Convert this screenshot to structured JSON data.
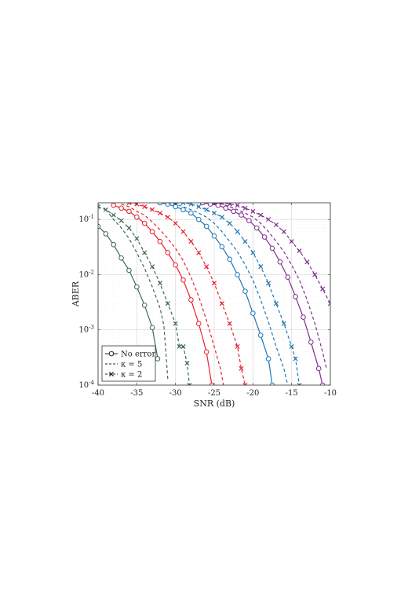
{
  "chart_data": {
    "type": "line",
    "title": "",
    "xlabel": "SNR (dB)",
    "ylabel": "ABER",
    "xlim": [
      -40,
      -10
    ],
    "ylim": [
      0.0001,
      0.2
    ],
    "y_scale": "log",
    "grid": true,
    "legend_position": "bottom-left",
    "x_ticks": [
      -40,
      -35,
      -30,
      -25,
      -20,
      -15,
      -10
    ],
    "x_tick_labels": [
      "-40",
      "-35",
      "-30",
      "-25",
      "-20",
      "-15",
      "-10"
    ],
    "y_ticks": [
      0.0001,
      0.001,
      0.01,
      0.1
    ],
    "y_tick_labels": [
      {
        "base": "10",
        "exp": "-4"
      },
      {
        "base": "10",
        "exp": "-3"
      },
      {
        "base": "10",
        "exp": "-2"
      },
      {
        "base": "10",
        "exp": "-1"
      }
    ],
    "legend": [
      {
        "label": "No error",
        "style": "solid",
        "marker": "o"
      },
      {
        "label": "κ = 5",
        "style": "dashed",
        "marker": "none"
      },
      {
        "label": "κ = 2",
        "style": "dashed",
        "marker": "x"
      }
    ],
    "series": [
      {
        "group": "green",
        "color": "#3d6b50",
        "style": "solid",
        "marker": "o",
        "x": [
          -40,
          -39,
          -38,
          -37,
          -36,
          -35,
          -34,
          -33,
          -32.3
        ],
        "y": [
          0.075,
          0.055,
          0.035,
          0.02,
          0.012,
          0.006,
          0.0028,
          0.0011,
          0.0003
        ]
      },
      {
        "group": "green",
        "color": "#3d6b50",
        "style": "dashed",
        "marker": "none",
        "x": [
          -39,
          -38,
          -37,
          -36,
          -35,
          -34,
          -33,
          -32,
          -31.5,
          -31
        ],
        "y": [
          0.15,
          0.1,
          0.07,
          0.045,
          0.025,
          0.013,
          0.006,
          0.0025,
          0.0012,
          0.00013
        ]
      },
      {
        "group": "green",
        "color": "#3d6b50",
        "style": "dashed",
        "marker": "x",
        "x": [
          -40,
          -39,
          -38,
          -37,
          -36,
          -35,
          -34,
          -33,
          -32,
          -31,
          -30,
          -29.5,
          -29,
          -28.5,
          -28.2
        ],
        "y": [
          0.17,
          0.15,
          0.12,
          0.095,
          0.07,
          0.045,
          0.025,
          0.014,
          0.007,
          0.003,
          0.0013,
          0.0005,
          0.0005,
          0.00025,
          0.0001
        ]
      },
      {
        "group": "red",
        "color": "#e8222e",
        "style": "solid",
        "marker": "o",
        "x": [
          -38,
          -37,
          -36,
          -35,
          -34,
          -33,
          -32,
          -31,
          -30,
          -29,
          -28,
          -27,
          -26,
          -25.3
        ],
        "y": [
          0.18,
          0.16,
          0.14,
          0.11,
          0.085,
          0.06,
          0.04,
          0.025,
          0.015,
          0.008,
          0.0035,
          0.0013,
          0.0004,
          0.0001
        ]
      },
      {
        "group": "red",
        "color": "#e8222e",
        "style": "dashed",
        "marker": "none",
        "x": [
          -37,
          -36,
          -35,
          -34,
          -33,
          -32,
          -31,
          -30,
          -29,
          -28,
          -27,
          -26,
          -25,
          -24.2,
          -23.8
        ],
        "y": [
          0.19,
          0.17,
          0.14,
          0.12,
          0.09,
          0.065,
          0.045,
          0.03,
          0.018,
          0.009,
          0.004,
          0.0015,
          0.0005,
          0.0002,
          0.0001
        ]
      },
      {
        "group": "red",
        "color": "#e8222e",
        "style": "dashed",
        "marker": "x",
        "x": [
          -36,
          -35,
          -34,
          -33,
          -32,
          -31,
          -30,
          -29,
          -28,
          -27,
          -26,
          -25,
          -24,
          -23,
          -22,
          -21.5,
          -21
        ],
        "y": [
          0.2,
          0.19,
          0.17,
          0.15,
          0.13,
          0.11,
          0.085,
          0.06,
          0.04,
          0.025,
          0.014,
          0.007,
          0.003,
          0.0013,
          0.0005,
          0.0002,
          0.0001
        ]
      },
      {
        "group": "blue",
        "color": "#1f77b4",
        "style": "solid",
        "marker": "o",
        "x": [
          -32,
          -31,
          -30,
          -29,
          -28,
          -27,
          -26,
          -25,
          -24,
          -23,
          -22,
          -21,
          -20,
          -19,
          -18,
          -17.5
        ],
        "y": [
          0.2,
          0.19,
          0.17,
          0.15,
          0.13,
          0.1,
          0.075,
          0.05,
          0.032,
          0.019,
          0.01,
          0.005,
          0.002,
          0.0008,
          0.0003,
          0.0001
        ]
      },
      {
        "group": "blue",
        "color": "#1f77b4",
        "style": "dashed",
        "marker": "none",
        "x": [
          -31,
          -30,
          -29,
          -28,
          -27,
          -26,
          -25,
          -24,
          -23,
          -22,
          -21,
          -20,
          -19,
          -18,
          -17,
          -16,
          -15.5
        ],
        "y": [
          0.2,
          0.19,
          0.17,
          0.15,
          0.13,
          0.11,
          0.085,
          0.06,
          0.04,
          0.026,
          0.015,
          0.008,
          0.0035,
          0.0014,
          0.0005,
          0.0002,
          0.0001
        ]
      },
      {
        "group": "blue",
        "color": "#1f77b4",
        "style": "dashed",
        "marker": "x",
        "x": [
          -30,
          -29,
          -28,
          -27,
          -26,
          -25,
          -24,
          -23,
          -22,
          -21,
          -20,
          -19,
          -18,
          -17,
          -16,
          -15,
          -14.5,
          -14
        ],
        "y": [
          0.2,
          0.2,
          0.19,
          0.17,
          0.15,
          0.13,
          0.11,
          0.085,
          0.06,
          0.04,
          0.025,
          0.014,
          0.007,
          0.003,
          0.0013,
          0.0005,
          0.0003,
          0.0001
        ]
      },
      {
        "group": "purple",
        "color": "#7e2f8e",
        "style": "solid",
        "marker": "o",
        "x": [
          -26.5,
          -25.5,
          -24.5,
          -23.5,
          -22.5,
          -21.5,
          -20.5,
          -19.5,
          -18.5,
          -17.5,
          -16.5,
          -15.5,
          -14.5,
          -13.5,
          -12.5,
          -11.5,
          -11
        ],
        "y": [
          0.2,
          0.19,
          0.18,
          0.16,
          0.14,
          0.12,
          0.095,
          0.07,
          0.048,
          0.03,
          0.017,
          0.009,
          0.004,
          0.0017,
          0.0006,
          0.0002,
          0.0001
        ]
      },
      {
        "group": "purple",
        "color": "#7e2f8e",
        "style": "dashed",
        "marker": "none",
        "x": [
          -25,
          -24,
          -23,
          -22,
          -21,
          -20,
          -19,
          -18,
          -17,
          -16,
          -15,
          -14,
          -13,
          -12,
          -11,
          -10.5
        ],
        "y": [
          0.2,
          0.19,
          0.17,
          0.15,
          0.13,
          0.11,
          0.085,
          0.06,
          0.04,
          0.026,
          0.015,
          0.008,
          0.0035,
          0.0013,
          0.0004,
          0.0002
        ]
      },
      {
        "group": "purple",
        "color": "#7e2f8e",
        "style": "dashed",
        "marker": "x",
        "x": [
          -25,
          -24,
          -23,
          -22,
          -21,
          -20,
          -19,
          -18,
          -17,
          -16,
          -15,
          -14,
          -13,
          -12,
          -11,
          -10
        ],
        "y": [
          0.2,
          0.2,
          0.19,
          0.18,
          0.16,
          0.14,
          0.12,
          0.1,
          0.08,
          0.06,
          0.04,
          0.027,
          0.017,
          0.01,
          0.0055,
          0.003
        ]
      }
    ]
  }
}
